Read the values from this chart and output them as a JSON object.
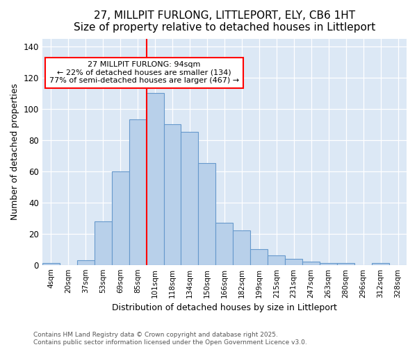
{
  "title": "27, MILLPIT FURLONG, LITTLEPORT, ELY, CB6 1HT",
  "subtitle": "Size of property relative to detached houses in Littleport",
  "xlabel": "Distribution of detached houses by size in Littleport",
  "ylabel": "Number of detached properties",
  "categories": [
    "4sqm",
    "20sqm",
    "37sqm",
    "53sqm",
    "69sqm",
    "85sqm",
    "101sqm",
    "118sqm",
    "134sqm",
    "150sqm",
    "166sqm",
    "182sqm",
    "199sqm",
    "215sqm",
    "231sqm",
    "247sqm",
    "263sqm",
    "280sqm",
    "296sqm",
    "312sqm",
    "328sqm"
  ],
  "values": [
    1,
    0,
    3,
    28,
    60,
    93,
    110,
    90,
    85,
    65,
    27,
    22,
    10,
    6,
    4,
    2,
    1,
    1,
    0,
    1,
    0
  ],
  "bar_color": "#b8d0ea",
  "bar_edge_color": "#6699cc",
  "vline_index": 6,
  "vline_color": "red",
  "annotation_title": "27 MILLPIT FURLONG: 94sqm",
  "annotation_line1": "← 22% of detached houses are smaller (134)",
  "annotation_line2": "77% of semi-detached houses are larger (467) →",
  "annotation_box_color": "white",
  "annotation_box_edge": "red",
  "ylim": [
    0,
    145
  ],
  "yticks": [
    0,
    20,
    40,
    60,
    80,
    100,
    120,
    140
  ],
  "background_color": "#dce8f5",
  "title_fontsize": 11,
  "subtitle_fontsize": 9,
  "footer_line1": "Contains HM Land Registry data © Crown copyright and database right 2025.",
  "footer_line2": "Contains public sector information licensed under the Open Government Licence v3.0."
}
